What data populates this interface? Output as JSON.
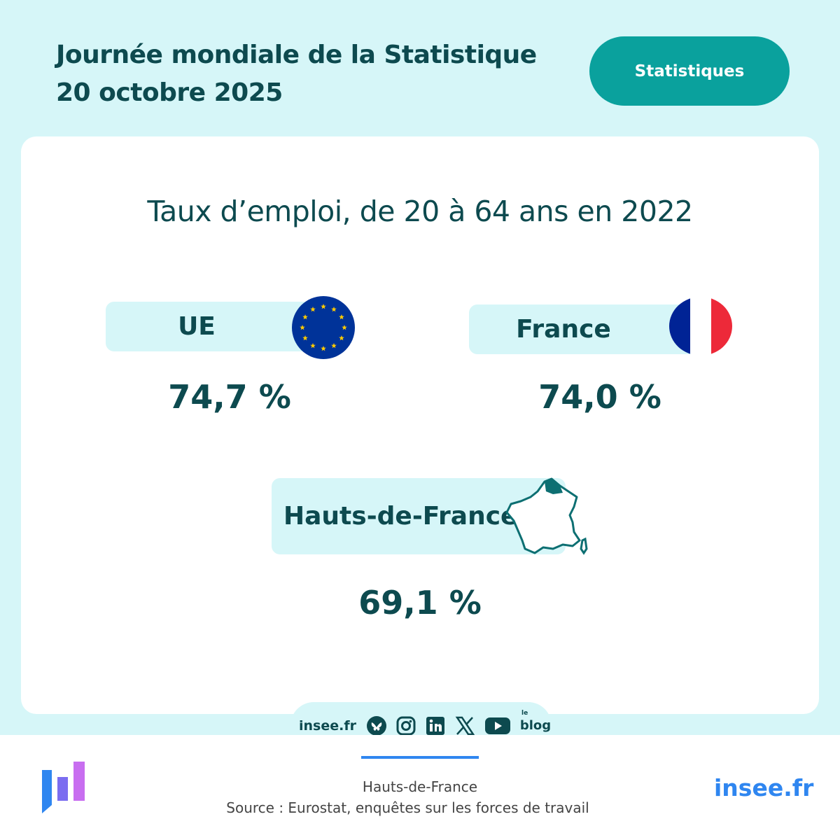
{
  "header": {
    "title_line1": "Journée mondiale de la Statistique",
    "title_line2": "20 octobre 2025",
    "tag": "Statistiques"
  },
  "main": {
    "title": "Taux d’emploi, de 20 à 64 ans en 2022",
    "items": [
      {
        "label": "UE",
        "value": "74,7 %",
        "icon": "eu-flag-icon"
      },
      {
        "label": "France",
        "value": "74,0 %",
        "icon": "france-flag-icon"
      },
      {
        "label": "Hauts-de-France",
        "value": "69,1 %",
        "icon": "france-map-icon"
      }
    ]
  },
  "social": {
    "site": "insee.fr",
    "icons": [
      "bluesky-icon",
      "instagram-icon",
      "linkedin-icon",
      "x-icon",
      "youtube-icon",
      "blog-icon"
    ],
    "blog_le": "le",
    "blog_label": "blog"
  },
  "footer": {
    "region": "Hauts-de-France",
    "source": "Source : Eurostat, enquêtes sur les forces de travail",
    "site": "insee.fr"
  },
  "colors": {
    "background": "#d6f6f8",
    "text": "#0d4a4f",
    "accent": "#0aa19d",
    "link": "#2f86f0",
    "eu_blue": "#003399",
    "eu_star": "#ffcc00",
    "fr_blue": "#002395",
    "fr_red": "#ed2939"
  }
}
